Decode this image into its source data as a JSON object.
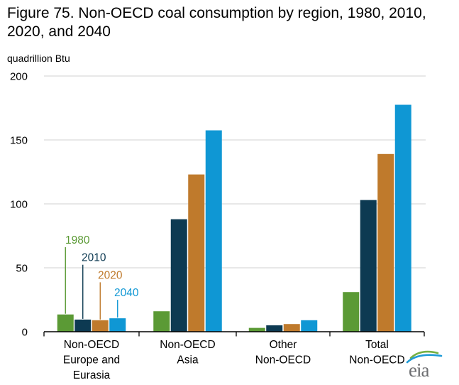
{
  "header": {
    "title": "Figure 75. Non-OECD coal consumption by region, 1980, 2010, 2020, and 2040",
    "unit_label": "quadrillion Btu"
  },
  "chart_data": {
    "type": "bar",
    "title": "Figure 75. Non-OECD coal consumption by region, 1980, 2010, 2020, and 2040",
    "ylabel": "quadrillion Btu",
    "ylim": [
      0,
      200
    ],
    "yticks": [
      0,
      50,
      100,
      150,
      200
    ],
    "grid": true,
    "legend_position": "callout labels with leader lines above first bar group",
    "categories": [
      "Non-OECD Europe and Eurasia",
      "Non-OECD Asia",
      "Other Non-OECD",
      "Total Non-OECD"
    ],
    "category_label_lines": [
      [
        "Non-OECD",
        "Europe and",
        "Eurasia"
      ],
      [
        "Non-OECD",
        "Asia"
      ],
      [
        "Other",
        "Non-OECD"
      ],
      [
        "Total",
        "Non-OECD"
      ]
    ],
    "series": [
      {
        "name": "1980",
        "color": "#5b9a35",
        "values": [
          13.5,
          16,
          3,
          31
        ]
      },
      {
        "name": "2010",
        "color": "#0d3a52",
        "values": [
          9.5,
          88,
          5,
          103
        ]
      },
      {
        "name": "2020",
        "color": "#bf7a2c",
        "values": [
          9,
          123,
          6,
          139
        ]
      },
      {
        "name": "2040",
        "color": "#0f97d4",
        "values": [
          10.5,
          157.5,
          9,
          177.5
        ]
      }
    ]
  },
  "branding": {
    "logo_text": "eia",
    "logo_color": "#6d6e71",
    "logo_arc_green": "#76b043",
    "logo_arc_blue": "#1f9bd7"
  },
  "colors": {
    "gridline": "#d9d9d9",
    "axis": "#000000",
    "text": "#000000"
  }
}
